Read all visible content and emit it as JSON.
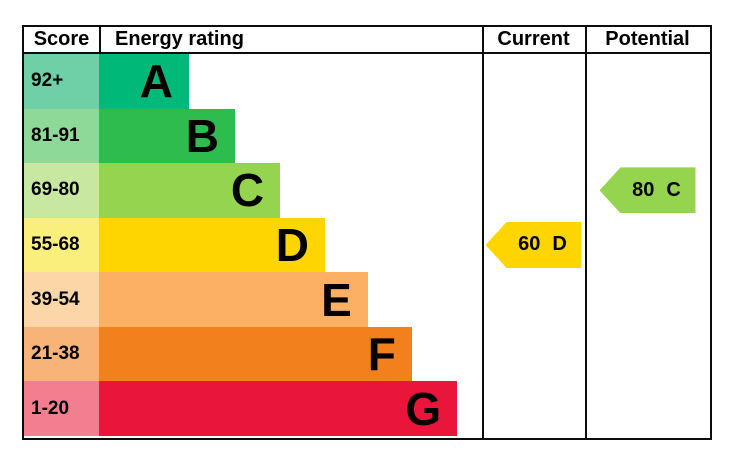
{
  "header": {
    "score_label": "Score",
    "rating_label": "Energy rating",
    "current_label": "Current",
    "potential_label": "Potential"
  },
  "chart_data": {
    "type": "bar",
    "title": "Energy rating",
    "bands": [
      {
        "letter": "A",
        "score_range": "92+",
        "bar_color": "#00b878",
        "tint_color": "#6fcfa7",
        "bar_width_pct": 23.5
      },
      {
        "letter": "B",
        "score_range": "81-91",
        "bar_color": "#2ebc4f",
        "tint_color": "#8fd998",
        "bar_width_pct": 35.5
      },
      {
        "letter": "C",
        "score_range": "69-80",
        "bar_color": "#95d44e",
        "tint_color": "#c8e8a2",
        "bar_width_pct": 47.3
      },
      {
        "letter": "D",
        "score_range": "55-68",
        "bar_color": "#ffd500",
        "tint_color": "#faee7d",
        "bar_width_pct": 59.0
      },
      {
        "letter": "E",
        "score_range": "39-54",
        "bar_color": "#fbb064",
        "tint_color": "#fcd6a6",
        "bar_width_pct": 70.2
      },
      {
        "letter": "F",
        "score_range": "21-38",
        "bar_color": "#f2811d",
        "tint_color": "#f7b378",
        "bar_width_pct": 81.7
      },
      {
        "letter": "G",
        "score_range": "1-20",
        "bar_color": "#e9153b",
        "tint_color": "#f37e90",
        "bar_width_pct": 93.5
      }
    ],
    "markers": {
      "current": {
        "value": 60,
        "letter": "D",
        "band_index": 3,
        "color": "#ffd500"
      },
      "potential": {
        "value": 80,
        "letter": "C",
        "band_index": 2,
        "color": "#95d44e"
      }
    }
  }
}
